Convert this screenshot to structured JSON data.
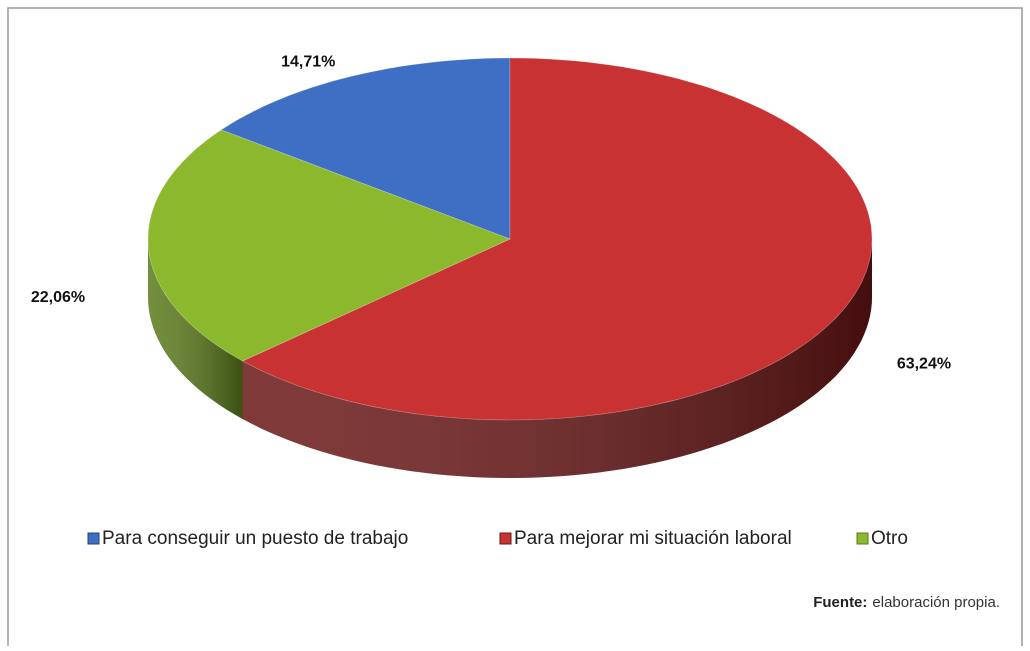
{
  "chart_data": {
    "type": "pie3d",
    "categories": [
      "Para conseguir un puesto de trabajo",
      "Para mejorar mi situación laboral",
      "Otro"
    ],
    "values": [
      14.71,
      63.24,
      22.06
    ],
    "value_labels": [
      "14,71%",
      "63,24%",
      "22,06%"
    ],
    "colors": [
      "#3f6fc4",
      "#c83232",
      "#8cb82e"
    ],
    "side_colors": [
      "#24427a",
      "#6a1616",
      "#5a7a1a"
    ],
    "legend": "bottom",
    "source_label": "Fuente:",
    "source_text": "elaboración propia."
  }
}
